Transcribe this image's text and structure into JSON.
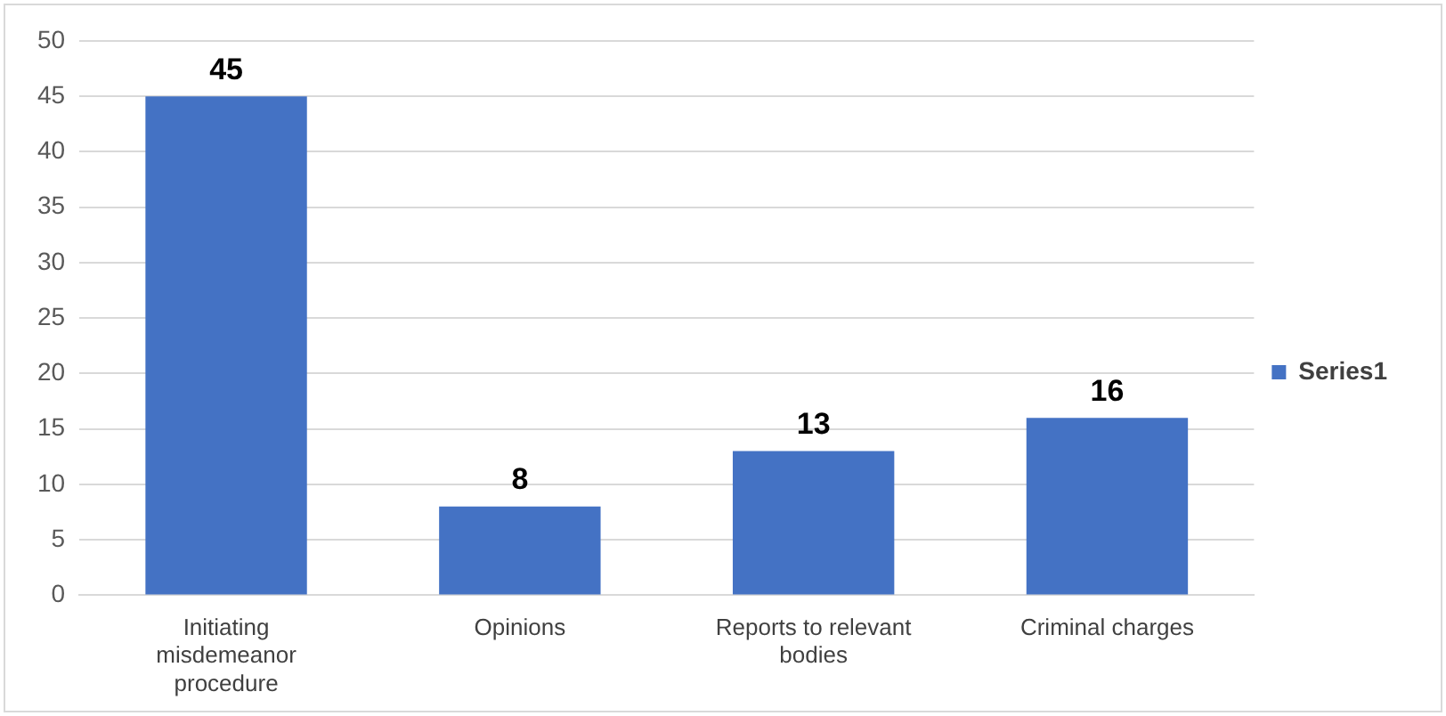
{
  "chart_data": {
    "type": "bar",
    "categories": [
      "Initiating misdemeanor procedure",
      "Opinions",
      "Reports to relevant bodies",
      "Criminal charges"
    ],
    "series": [
      {
        "name": "Series1",
        "color": "#4472c4",
        "values": [
          45,
          8,
          13,
          16
        ]
      }
    ],
    "ylim": [
      0,
      50
    ],
    "yticks": [
      0,
      5,
      10,
      15,
      20,
      25,
      30,
      35,
      40,
      45,
      50
    ],
    "grid": "y",
    "legend": "right",
    "data_labels": true
  }
}
